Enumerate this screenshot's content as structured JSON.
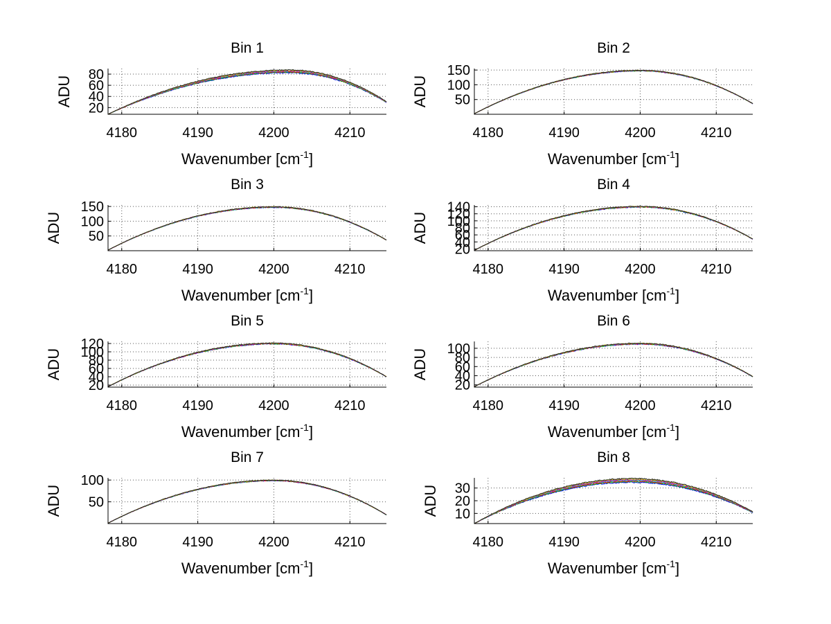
{
  "colors": {
    "series": [
      "#0000ff",
      "#00aa00",
      "#ff0000",
      "#00bfbf",
      "#bf00bf",
      "#bfbf00",
      "#222222"
    ]
  },
  "chart_data": [
    {
      "type": "line",
      "title": "Bin 1",
      "xlabel": "Wavenumber [cm",
      "xlabel_sup": "-1",
      "xlabel_tail": "]",
      "ylabel": "ADU",
      "xlim": [
        4178.2,
        4214.8
      ],
      "ylim": [
        8,
        90
      ],
      "xticks": [
        4180,
        4190,
        4200,
        4210
      ],
      "yticks": [
        20,
        40,
        60,
        80
      ],
      "grid": true,
      "peak_x": 4202,
      "peak_y": 85,
      "end_left_y": 8,
      "end_right_y": 30,
      "spread": 5,
      "noise": 1.2
    },
    {
      "type": "line",
      "title": "Bin 2",
      "xlabel": "Wavenumber [cm",
      "xlabel_sup": "-1",
      "xlabel_tail": "]",
      "ylabel": "ADU",
      "xlim": [
        4178.2,
        4214.8
      ],
      "ylim": [
        0,
        155
      ],
      "xticks": [
        4180,
        4190,
        4200,
        4210
      ],
      "yticks": [
        50,
        100,
        150
      ],
      "grid": true,
      "peak_x": 4200,
      "peak_y": 148,
      "end_left_y": 2,
      "end_right_y": 36,
      "spread": 2,
      "noise": 2
    },
    {
      "type": "line",
      "title": "Bin 3",
      "xlabel": "Wavenumber [cm",
      "xlabel_sup": "-1",
      "xlabel_tail": "]",
      "ylabel": "ADU",
      "xlim": [
        4178.2,
        4214.8
      ],
      "ylim": [
        0,
        155
      ],
      "xticks": [
        4180,
        4190,
        4200,
        4210
      ],
      "yticks": [
        50,
        100,
        150
      ],
      "grid": true,
      "peak_x": 4200,
      "peak_y": 148,
      "end_left_y": 2,
      "end_right_y": 36,
      "spread": 2,
      "noise": 2
    },
    {
      "type": "line",
      "title": "Bin 4",
      "xlabel": "Wavenumber [cm",
      "xlabel_sup": "-1",
      "xlabel_tail": "]",
      "ylabel": "ADU",
      "xlim": [
        4178.2,
        4214.8
      ],
      "ylim": [
        15,
        145
      ],
      "xticks": [
        4180,
        4190,
        4200,
        4210
      ],
      "yticks": [
        20,
        40,
        60,
        80,
        100,
        120,
        140
      ],
      "grid": true,
      "peak_x": 4200,
      "peak_y": 140,
      "end_left_y": 16,
      "end_right_y": 48,
      "spread": 2,
      "noise": 1.8
    },
    {
      "type": "line",
      "title": "Bin 5",
      "xlabel": "Wavenumber [cm",
      "xlabel_sup": "-1",
      "xlabel_tail": "]",
      "ylabel": "ADU",
      "xlim": [
        4178.2,
        4214.8
      ],
      "ylim": [
        15,
        125
      ],
      "xticks": [
        4180,
        4190,
        4200,
        4210
      ],
      "yticks": [
        20,
        40,
        60,
        80,
        100,
        120
      ],
      "grid": true,
      "peak_x": 4200,
      "peak_y": 120,
      "end_left_y": 16,
      "end_right_y": 40,
      "spread": 2,
      "noise": 1.6
    },
    {
      "type": "line",
      "title": "Bin 6",
      "xlabel": "Wavenumber [cm",
      "xlabel_sup": "-1",
      "xlabel_tail": "]",
      "ylabel": "ADU",
      "xlim": [
        4178.2,
        4214.8
      ],
      "ylim": [
        15,
        115
      ],
      "xticks": [
        4180,
        4190,
        4200,
        4210
      ],
      "yticks": [
        20,
        40,
        60,
        80,
        100
      ],
      "grid": true,
      "peak_x": 4200,
      "peak_y": 110,
      "end_left_y": 16,
      "end_right_y": 38,
      "spread": 2,
      "noise": 1.4
    },
    {
      "type": "line",
      "title": "Bin 7",
      "xlabel": "Wavenumber [cm",
      "xlabel_sup": "-1",
      "xlabel_tail": "]",
      "ylabel": "ADU",
      "xlim": [
        4178.2,
        4214.8
      ],
      "ylim": [
        0,
        105
      ],
      "xticks": [
        4180,
        4190,
        4200,
        4210
      ],
      "yticks": [
        50,
        100
      ],
      "grid": true,
      "peak_x": 4200,
      "peak_y": 99,
      "end_left_y": 1,
      "end_right_y": 20,
      "spread": 1.5,
      "noise": 1.2
    },
    {
      "type": "line",
      "title": "Bin 8",
      "xlabel": "Wavenumber [cm",
      "xlabel_sup": "-1",
      "xlabel_tail": "]",
      "ylabel": "ADU",
      "xlim": [
        4178.2,
        4214.8
      ],
      "ylim": [
        2,
        38
      ],
      "xticks": [
        4180,
        4190,
        4200,
        4210
      ],
      "yticks": [
        10,
        20,
        30
      ],
      "grid": true,
      "peak_x": 4199,
      "peak_y": 36,
      "end_left_y": 2,
      "end_right_y": 11,
      "spread": 3,
      "noise": 0.6
    }
  ]
}
